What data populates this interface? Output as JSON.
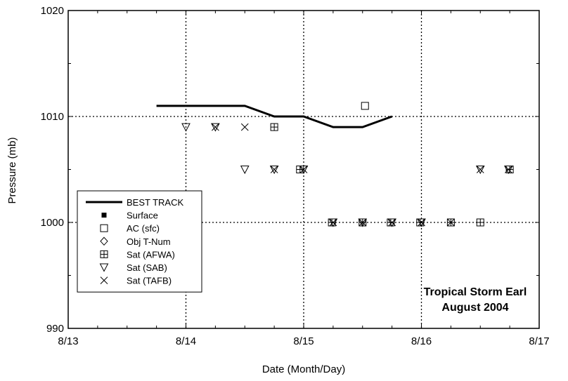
{
  "chart_data": {
    "type": "scatter",
    "xlabel": "Date (Month/Day)",
    "ylabel": "Pressure (mb)",
    "xlim": [
      "8/13",
      "8/17"
    ],
    "ylim": [
      990,
      1020
    ],
    "x_ticks": [
      "8/13",
      "8/14",
      "8/15",
      "8/16",
      "8/17"
    ],
    "y_ticks": [
      990,
      1000,
      1010,
      1020
    ],
    "grid": "dotted at 8/14, 8/15, 8/16, 1000 and 1010",
    "legend_position": "left",
    "annotation": [
      "Tropical Storm Earl",
      "August 2004"
    ],
    "series": [
      {
        "name": "BEST TRACK",
        "marker": "line",
        "points": [
          [
            "8/13 18:00",
            1011
          ],
          [
            "8/14 00:00",
            1011
          ],
          [
            "8/14 06:00",
            1011
          ],
          [
            "8/14 12:00",
            1011
          ],
          [
            "8/14 18:00",
            1010
          ],
          [
            "8/15 00:00",
            1010
          ],
          [
            "8/15 06:00",
            1009
          ],
          [
            "8/15 12:00",
            1009
          ],
          [
            "8/15 18:00",
            1010
          ]
        ]
      },
      {
        "name": "Surface",
        "marker": "filled-square",
        "points": []
      },
      {
        "name": "AC (sfc)",
        "marker": "open-square",
        "points": [
          [
            "8/15 12:30",
            1011
          ]
        ]
      },
      {
        "name": "Obj T-Num",
        "marker": "diamond",
        "points": []
      },
      {
        "name": "Sat (AFWA)",
        "marker": "square-plus",
        "points": [
          [
            "8/14 18:00",
            1009
          ],
          [
            "8/14 23:15",
            1005
          ],
          [
            "8/15 05:45",
            1000
          ],
          [
            "8/15 12:00",
            1000
          ],
          [
            "8/15 17:45",
            1000
          ],
          [
            "8/15 23:45",
            1000
          ],
          [
            "8/16 06:00",
            1000
          ],
          [
            "8/16 12:00",
            1000
          ],
          [
            "8/16 18:00",
            1005
          ]
        ]
      },
      {
        "name": "Sat (SAB)",
        "marker": "triangle-down",
        "points": [
          [
            "8/14 00:00",
            1009
          ],
          [
            "8/14 06:00",
            1009
          ],
          [
            "8/14 12:00",
            1005
          ],
          [
            "8/14 18:00",
            1005
          ],
          [
            "8/15 00:00",
            1005
          ],
          [
            "8/15 06:00",
            1000
          ],
          [
            "8/15 12:00",
            1000
          ],
          [
            "8/15 18:00",
            1000
          ],
          [
            "8/16 00:00",
            1000
          ],
          [
            "8/16 12:00",
            1005
          ],
          [
            "8/16 17:45",
            1005
          ]
        ]
      },
      {
        "name": "Sat (TAFB)",
        "marker": "x",
        "points": [
          [
            "8/14 06:00",
            1009
          ],
          [
            "8/14 12:00",
            1009
          ],
          [
            "8/14 18:00",
            1005
          ],
          [
            "8/15 00:00",
            1005
          ],
          [
            "8/15 06:00",
            1000
          ],
          [
            "8/15 12:00",
            1000
          ],
          [
            "8/15 18:00",
            1000
          ],
          [
            "8/16 00:00",
            1000
          ],
          [
            "8/16 06:00",
            1000
          ],
          [
            "8/16 12:00",
            1005
          ],
          [
            "8/16 17:45",
            1005
          ]
        ]
      }
    ]
  }
}
